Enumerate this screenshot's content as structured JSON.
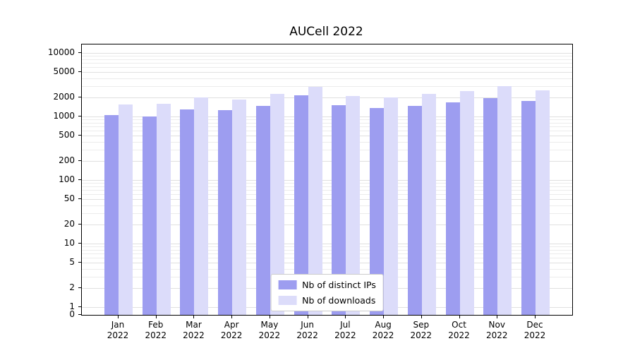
{
  "chart_data": {
    "type": "bar",
    "title": "AUCell 2022",
    "year_label": "2022",
    "categories": [
      "Jan",
      "Feb",
      "Mar",
      "Apr",
      "May",
      "Jun",
      "Jul",
      "Aug",
      "Sep",
      "Oct",
      "Nov",
      "Dec"
    ],
    "yscale": "symlog",
    "yticks": [
      0,
      1,
      2,
      5,
      10,
      20,
      50,
      100,
      200,
      500,
      1000,
      2000,
      5000,
      10000
    ],
    "ylim": [
      0,
      13000
    ],
    "grid": true,
    "legend_position": "lower center",
    "series": [
      {
        "name": "Nb of distinct IPs",
        "color": "#9d9df0",
        "values": [
          1050,
          1000,
          1300,
          1250,
          1450,
          2150,
          1500,
          1350,
          1450,
          1650,
          1950,
          1750
        ]
      },
      {
        "name": "Nb of downloads",
        "color": "#dcdcfa",
        "values": [
          1550,
          1600,
          2000,
          1850,
          2250,
          2900,
          2100,
          2000,
          2250,
          2500,
          3000,
          2600
        ]
      }
    ]
  }
}
